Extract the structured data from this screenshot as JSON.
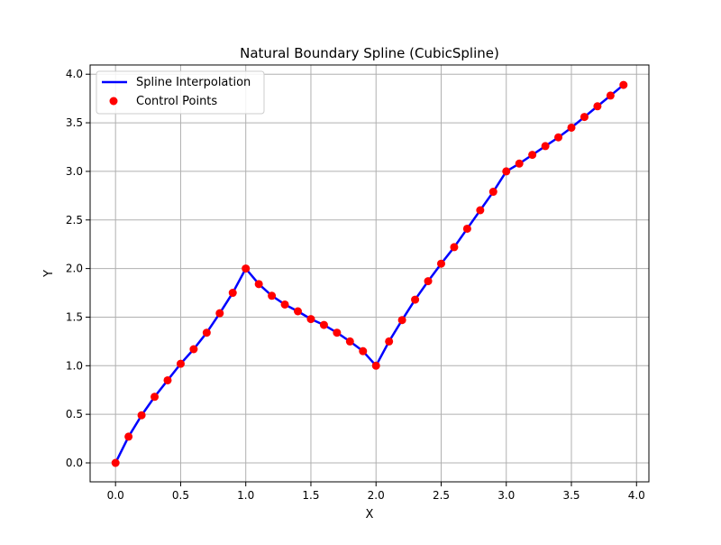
{
  "colors": {
    "line": "#0000ff",
    "points": "#ff0000",
    "grid": "#b0b0b0",
    "axes": "#000000"
  },
  "chart_data": {
    "type": "line",
    "title": "Natural Boundary Spline (CubicSpline)",
    "xlabel": "X",
    "ylabel": "Y",
    "xlim": [
      -0.195,
      4.095
    ],
    "ylim": [
      -0.195,
      4.095
    ],
    "xticks": [
      0.0,
      0.5,
      1.0,
      1.5,
      2.0,
      2.5,
      3.0,
      3.5,
      4.0
    ],
    "yticks": [
      0.0,
      0.5,
      1.0,
      1.5,
      2.0,
      2.5,
      3.0,
      3.5,
      4.0
    ],
    "xtick_labels": [
      "0.0",
      "0.5",
      "1.0",
      "1.5",
      "2.0",
      "2.5",
      "3.0",
      "3.5",
      "4.0"
    ],
    "ytick_labels": [
      "0.0",
      "0.5",
      "1.0",
      "1.5",
      "2.0",
      "2.5",
      "3.0",
      "3.5",
      "4.0"
    ],
    "grid": true,
    "legend_position": "upper-left",
    "series": [
      {
        "name": "Spline Interpolation",
        "kind": "line",
        "color": "#0000ff",
        "x": [
          0.0,
          0.1,
          0.2,
          0.3,
          0.4,
          0.5,
          0.6,
          0.7,
          0.8,
          0.9,
          1.0,
          1.1,
          1.2,
          1.3,
          1.4,
          1.5,
          1.6,
          1.7,
          1.8,
          1.9,
          2.0,
          2.1,
          2.2,
          2.3,
          2.4,
          2.5,
          2.6,
          2.7,
          2.8,
          2.9,
          3.0,
          3.1,
          3.2,
          3.3,
          3.4,
          3.5,
          3.6,
          3.7,
          3.8,
          3.9
        ],
        "y": [
          0.0,
          0.27,
          0.49,
          0.68,
          0.85,
          1.02,
          1.17,
          1.34,
          1.54,
          1.75,
          2.0,
          1.84,
          1.72,
          1.63,
          1.56,
          1.48,
          1.42,
          1.34,
          1.25,
          1.15,
          1.0,
          1.25,
          1.47,
          1.68,
          1.87,
          2.05,
          2.22,
          2.41,
          2.6,
          2.79,
          3.0,
          3.08,
          3.17,
          3.26,
          3.35,
          3.45,
          3.56,
          3.67,
          3.78,
          3.89
        ]
      },
      {
        "name": "Control Points",
        "kind": "scatter",
        "color": "#ff0000",
        "x": [
          0.0,
          0.1,
          0.2,
          0.3,
          0.4,
          0.5,
          0.6,
          0.7,
          0.8,
          0.9,
          1.0,
          1.1,
          1.2,
          1.3,
          1.4,
          1.5,
          1.6,
          1.7,
          1.8,
          1.9,
          2.0,
          2.1,
          2.2,
          2.3,
          2.4,
          2.5,
          2.6,
          2.7,
          2.8,
          2.9,
          3.0,
          3.1,
          3.2,
          3.3,
          3.4,
          3.5,
          3.6,
          3.7,
          3.8,
          3.9
        ],
        "y": [
          0.0,
          0.27,
          0.49,
          0.68,
          0.85,
          1.02,
          1.17,
          1.34,
          1.54,
          1.75,
          2.0,
          1.84,
          1.72,
          1.63,
          1.56,
          1.48,
          1.42,
          1.34,
          1.25,
          1.15,
          1.0,
          1.25,
          1.47,
          1.68,
          1.87,
          2.05,
          2.22,
          2.41,
          2.6,
          2.79,
          3.0,
          3.08,
          3.17,
          3.26,
          3.35,
          3.45,
          3.56,
          3.67,
          3.78,
          3.89
        ]
      }
    ]
  }
}
